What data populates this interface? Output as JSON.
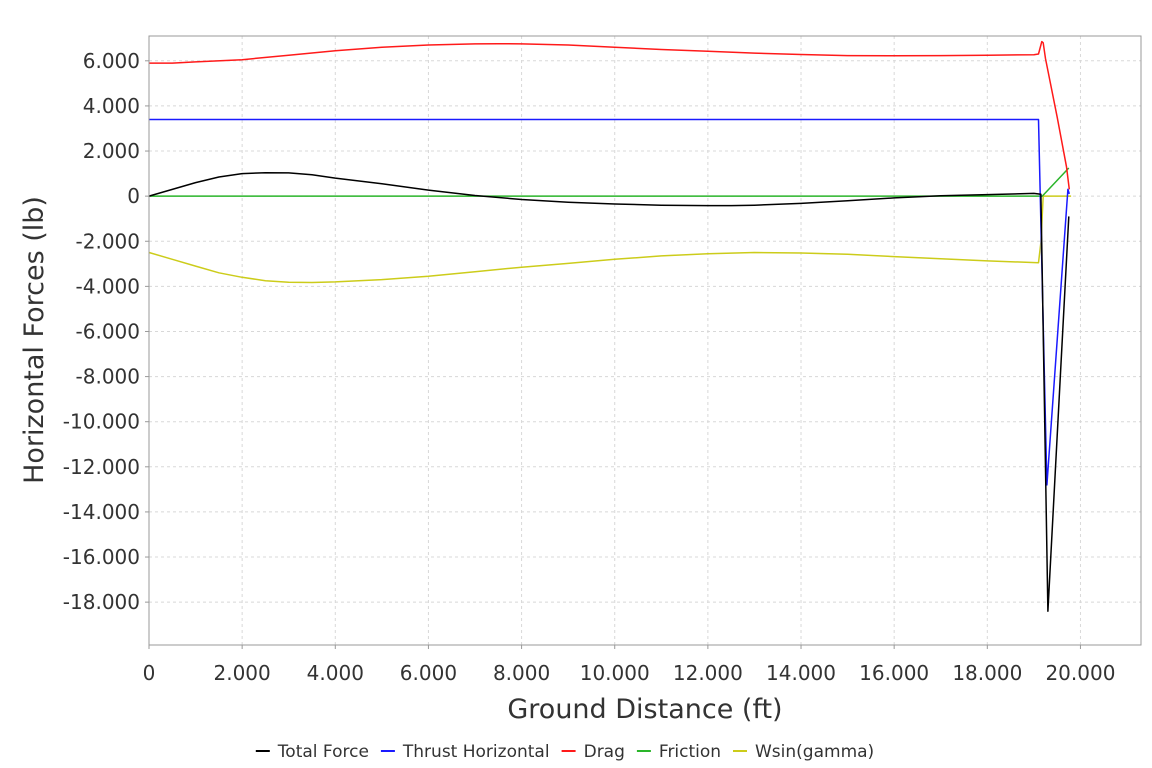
{
  "chart_data": {
    "type": "line",
    "xlabel": "Ground Distance (ft)",
    "ylabel": "Horizontal Forces (lb)",
    "xlim": [
      0,
      21300
    ],
    "ylim": [
      -19900,
      7100
    ],
    "xticks": [
      0,
      2000,
      4000,
      6000,
      8000,
      10000,
      12000,
      14000,
      16000,
      18000,
      20000
    ],
    "xtick_labels": [
      "0",
      "2.000",
      "4.000",
      "6.000",
      "8.000",
      "10.000",
      "12.000",
      "14.000",
      "16.000",
      "18.000",
      "20.000"
    ],
    "yticks": [
      6000,
      4000,
      2000,
      0,
      -2000,
      -4000,
      -6000,
      -8000,
      -10000,
      -12000,
      -14000,
      -16000,
      -18000
    ],
    "ytick_labels": [
      "6.000",
      "4.000",
      "2.000",
      "0",
      "-2.000",
      "-4.000",
      "-6.000",
      "-8.000",
      "-10.000",
      "-12.000",
      "-14.000",
      "-16.000",
      "-18.000"
    ],
    "grid": true,
    "legend_position": "bottom",
    "series": [
      {
        "name": "Total Force",
        "color": "#000000",
        "x": [
          0,
          500,
          1000,
          1500,
          2000,
          2500,
          3000,
          3500,
          4000,
          5000,
          6000,
          7000,
          8000,
          9000,
          10000,
          11000,
          12000,
          12500,
          13000,
          14000,
          15000,
          16000,
          17000,
          18000,
          19000,
          19150,
          19300,
          19750
        ],
        "y": [
          0,
          300,
          600,
          850,
          1000,
          1040,
          1030,
          950,
          800,
          550,
          270,
          30,
          -150,
          -270,
          -350,
          -400,
          -420,
          -420,
          -400,
          -320,
          -200,
          -80,
          20,
          70,
          120,
          80,
          -18400,
          -900
        ]
      },
      {
        "name": "Thrust Horizontal",
        "color": "#1a1aff",
        "x": [
          0,
          19100,
          19280,
          19730,
          19760
        ],
        "y": [
          3400,
          3400,
          -12800,
          300,
          100
        ]
      },
      {
        "name": "Drag",
        "color": "#ff1a1a",
        "x": [
          0,
          500,
          1000,
          2000,
          3000,
          4000,
          5000,
          6000,
          7000,
          7500,
          8000,
          9000,
          10000,
          11000,
          12000,
          13000,
          14000,
          15000,
          16000,
          17000,
          18000,
          19000,
          19100,
          19170,
          19200,
          19250,
          19500,
          19700,
          19760
        ],
        "y": [
          5900,
          5900,
          5950,
          6050,
          6250,
          6450,
          6600,
          6700,
          6750,
          6760,
          6750,
          6700,
          6600,
          6500,
          6420,
          6340,
          6280,
          6230,
          6220,
          6230,
          6250,
          6270,
          6300,
          6850,
          6800,
          6100,
          3500,
          1300,
          300
        ]
      },
      {
        "name": "Friction",
        "color": "#2ab52a",
        "x": [
          0,
          19100,
          19180,
          19750
        ],
        "y": [
          0,
          0,
          0,
          1250
        ]
      },
      {
        "name": "Wsin(gamma)",
        "color": "#cccc1a",
        "x": [
          0,
          500,
          1000,
          1500,
          2000,
          2500,
          3000,
          3500,
          4000,
          5000,
          6000,
          7000,
          8000,
          9000,
          10000,
          11000,
          12000,
          13000,
          14000,
          15000,
          16000,
          17000,
          18000,
          19100,
          19150,
          19200,
          19800
        ],
        "y": [
          -2500,
          -2800,
          -3100,
          -3400,
          -3600,
          -3750,
          -3820,
          -3830,
          -3800,
          -3700,
          -3550,
          -3350,
          -3150,
          -2980,
          -2800,
          -2650,
          -2550,
          -2500,
          -2520,
          -2580,
          -2680,
          -2780,
          -2870,
          -2950,
          -2050,
          0,
          0
        ]
      }
    ]
  }
}
